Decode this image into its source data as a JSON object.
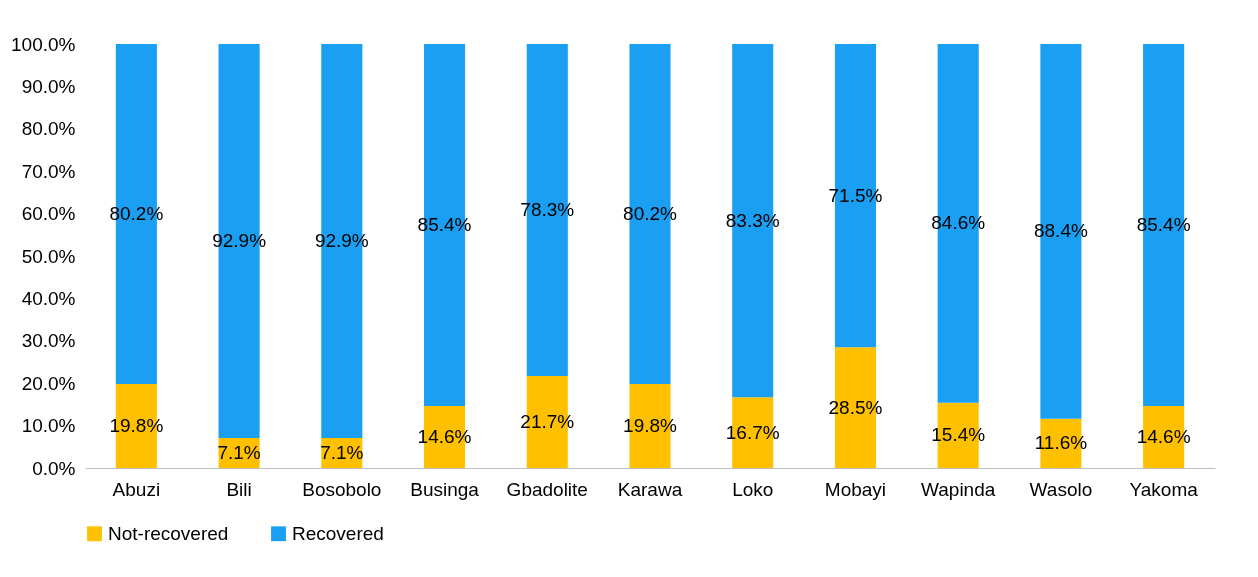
{
  "chart_data": {
    "type": "bar",
    "stacked": true,
    "categories": [
      "Abuzi",
      "Bili",
      "Bosobolo",
      "Businga",
      "Gbadolite",
      "Karawa",
      "Loko",
      "Mobayi",
      "Wapinda",
      "Wasolo",
      "Yakoma"
    ],
    "series": [
      {
        "name": "Not-recovered",
        "color": "#ffc000",
        "values": [
          19.8,
          7.1,
          7.1,
          14.6,
          21.7,
          19.8,
          16.7,
          28.5,
          15.4,
          11.6,
          14.6
        ],
        "value_labels": [
          "19.8%",
          "7.1%",
          "7.1%",
          "14.6%",
          "21.7%",
          "19.8%",
          "16.7%",
          "28.5%",
          "15.4%",
          "11.6%",
          "14.6%"
        ]
      },
      {
        "name": "Recovered",
        "color": "#1a9ff2",
        "values": [
          80.2,
          92.9,
          92.9,
          85.4,
          78.3,
          80.2,
          83.3,
          71.5,
          84.6,
          88.4,
          85.4
        ],
        "value_labels": [
          "80.2%",
          "92.9%",
          "92.9%",
          "85.4%",
          "78.3%",
          "80.2%",
          "83.3%",
          "71.5%",
          "84.6%",
          "88.4%",
          "85.4%"
        ]
      }
    ],
    "ylim": [
      0,
      100
    ],
    "yticks": [
      {
        "value": 0,
        "label": "0.0%"
      },
      {
        "value": 10,
        "label": "10.0%"
      },
      {
        "value": 20,
        "label": "20.0%"
      },
      {
        "value": 30,
        "label": "30.0%"
      },
      {
        "value": 40,
        "label": "40.0%"
      },
      {
        "value": 50,
        "label": "50.0%"
      },
      {
        "value": 60,
        "label": "60.0%"
      },
      {
        "value": 70,
        "label": "70.0%"
      },
      {
        "value": 80,
        "label": "80.0%"
      },
      {
        "value": 90,
        "label": "90.0%"
      },
      {
        "value": 100,
        "label": "100.0%"
      }
    ],
    "grid": false,
    "legend": "bottom"
  }
}
